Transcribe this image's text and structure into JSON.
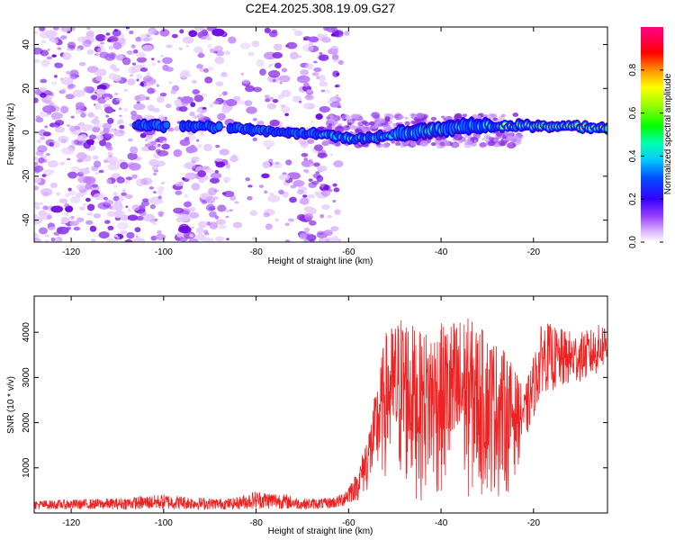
{
  "title": "C2E4.2025.308.19.09.G27",
  "chart_data": [
    {
      "type": "heatmap",
      "title": "C2E4.2025.308.19.09.G27",
      "xlabel": "Height of straight line (km)",
      "ylabel": "Frequency (Hz)",
      "xlim": [
        -128,
        -4
      ],
      "ylim": [
        -50,
        48
      ],
      "xticks": [
        -120,
        -100,
        -80,
        -60,
        -40,
        -20
      ],
      "xtick_labels": [
        "-120",
        "-100",
        "-80",
        "-60",
        "-40",
        "-20"
      ],
      "yticks": [
        -40,
        -20,
        0,
        20,
        40
      ],
      "ytick_labels": [
        "-40",
        "-20",
        "0",
        "20",
        "40"
      ],
      "colorbar": {
        "label": "Normalized spectral amplitude",
        "range": [
          0,
          1
        ],
        "ticks": [
          0.0,
          0.2,
          0.4,
          0.6,
          0.8
        ],
        "tick_labels": [
          "0.0",
          "0.2",
          "0.4",
          "0.6",
          "0.8"
        ],
        "colors": [
          "#ffffff",
          "#c080ff",
          "#6a00e0",
          "#0000ff",
          "#00ffff",
          "#00ff00",
          "#ffff00",
          "#ff8000",
          "#ff0000",
          "#ff0080"
        ]
      },
      "ridge": {
        "description_values_hz_at_km": [
          {
            "x": -106,
            "y": 3
          },
          {
            "x": -95,
            "y": 3
          },
          {
            "x": -85,
            "y": 2
          },
          {
            "x": -75,
            "y": 0
          },
          {
            "x": -65,
            "y": -1
          },
          {
            "x": -58,
            "y": -3
          },
          {
            "x": -50,
            "y": -1
          },
          {
            "x": -42,
            "y": 1
          },
          {
            "x": -35,
            "y": 3
          },
          {
            "x": -25,
            "y": 3
          },
          {
            "x": -15,
            "y": 3
          },
          {
            "x": -4,
            "y": 2
          }
        ]
      }
    },
    {
      "type": "line",
      "xlabel": "Height of straight line (km)",
      "ylabel": "SNR (10 * v/v)",
      "xlim": [
        -128,
        -4
      ],
      "ylim": [
        0,
        4800
      ],
      "xticks": [
        -120,
        -100,
        -80,
        -60,
        -40,
        -20
      ],
      "xtick_labels": [
        "-120",
        "-100",
        "-80",
        "-60",
        "-40",
        "-20"
      ],
      "yticks": [
        1000,
        2000,
        3000,
        4000
      ],
      "ytick_labels": [
        "1000",
        "2000",
        "3000",
        "4000"
      ],
      "series": [
        {
          "name": "SNR",
          "color": "#ee2222",
          "envelope": {
            "x": [
              -128,
              -120,
              -110,
              -100,
              -90,
              -85,
              -80,
              -75,
              -70,
              -65,
              -62,
              -58,
              -55,
              -52,
              -48,
              -45,
              -40,
              -35,
              -30,
              -27,
              -25,
              -22,
              -18,
              -15,
              -10,
              -7,
              -4
            ],
            "low": [
              80,
              80,
              80,
              80,
              80,
              80,
              90,
              90,
              80,
              90,
              110,
              250,
              450,
              650,
              300,
              250,
              200,
              200,
              250,
              300,
              450,
              1500,
              2700,
              2700,
              2900,
              3000,
              3300
            ],
            "high": [
              280,
              300,
              330,
              420,
              330,
              330,
              500,
              450,
              320,
              330,
              400,
              900,
              2200,
              4000,
              4500,
              4000,
              4200,
              4400,
              4000,
              3700,
              3400,
              2700,
              4300,
              4100,
              4000,
              4100,
              4300
            ]
          }
        }
      ]
    }
  ]
}
